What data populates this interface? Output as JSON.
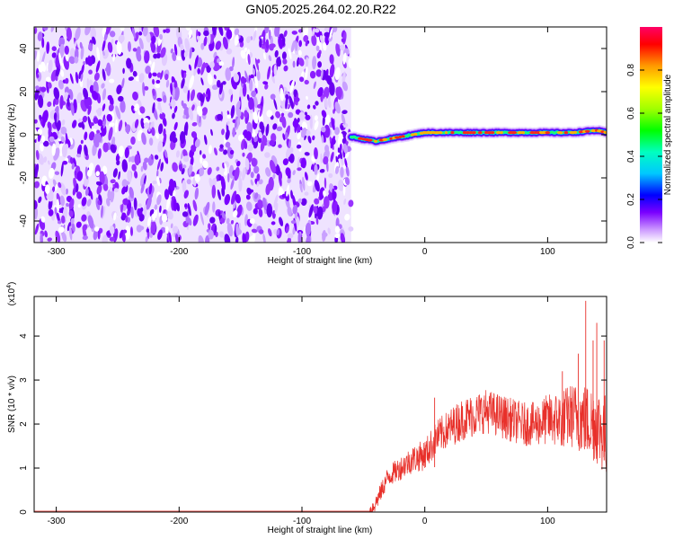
{
  "title": "GN05.2025.264.02.20.R22",
  "chart_data": [
    {
      "type": "heatmap",
      "xlabel": "Height of straight line (km)",
      "ylabel": "Frequency (Hz)",
      "xlim": [
        -318,
        148
      ],
      "ylim": [
        -50,
        50
      ],
      "x_ticks": [
        -300,
        -200,
        -100,
        0,
        100
      ],
      "y_ticks": [
        -40,
        -20,
        0,
        20,
        40
      ],
      "noise_region_x": [
        -318,
        -60
      ],
      "signal_track": {
        "x": [
          -60,
          -50,
          -40,
          -30,
          -20,
          -10,
          0,
          10,
          20,
          30,
          40,
          50,
          60,
          70,
          80,
          90,
          100,
          110,
          120,
          130,
          140,
          148
        ],
        "frequency": [
          -1,
          -2,
          -3,
          -2,
          -1,
          0,
          1,
          1,
          1,
          1,
          1,
          1,
          1,
          1,
          1,
          1,
          1,
          1,
          1,
          1.5,
          2,
          1
        ]
      },
      "colorbar": {
        "label": "Normalized spectral amplitude",
        "range": [
          0,
          1
        ],
        "ticks": [
          "0.0",
          "0.2",
          "0.4",
          "0.6",
          "0.8"
        ]
      }
    },
    {
      "type": "line",
      "xlabel": "Height of straight line (km)",
      "ylabel": "SNR (10 * v/v)",
      "scale_label_prefix": "(x10",
      "scale_label_exp": "4",
      "scale_label_suffix": ")",
      "xlim": [
        -318,
        148
      ],
      "ylim": [
        0,
        4.9
      ],
      "x_ticks": [
        -300,
        -200,
        -100,
        0,
        100
      ],
      "y_ticks": [
        0,
        1,
        2,
        3,
        4
      ],
      "color": "#e8302a",
      "series": [
        {
          "x": [
            -318,
            -100,
            -45,
            -40,
            -35,
            -30,
            -20,
            -10,
            0,
            10,
            20,
            30,
            40,
            50,
            60,
            70,
            80,
            90,
            100,
            110,
            120,
            130,
            140,
            148
          ],
          "y": [
            0.02,
            0.02,
            0.02,
            0.2,
            0.5,
            0.8,
            1.0,
            1.2,
            1.3,
            1.7,
            1.9,
            2.1,
            2.2,
            2.3,
            2.2,
            2.1,
            2.0,
            2.0,
            2.1,
            2.1,
            2.2,
            2.1,
            2.0,
            1.7
          ]
        }
      ],
      "spikes": [
        {
          "x": 8,
          "y": 2.6
        },
        {
          "x": 112,
          "y": 3.2
        },
        {
          "x": 125,
          "y": 3.6
        },
        {
          "x": 131,
          "y": 4.8
        },
        {
          "x": 137,
          "y": 3.9
        },
        {
          "x": 140,
          "y": 4.3
        },
        {
          "x": 146,
          "y": 3.9
        }
      ],
      "noise_band": 0.5
    }
  ]
}
